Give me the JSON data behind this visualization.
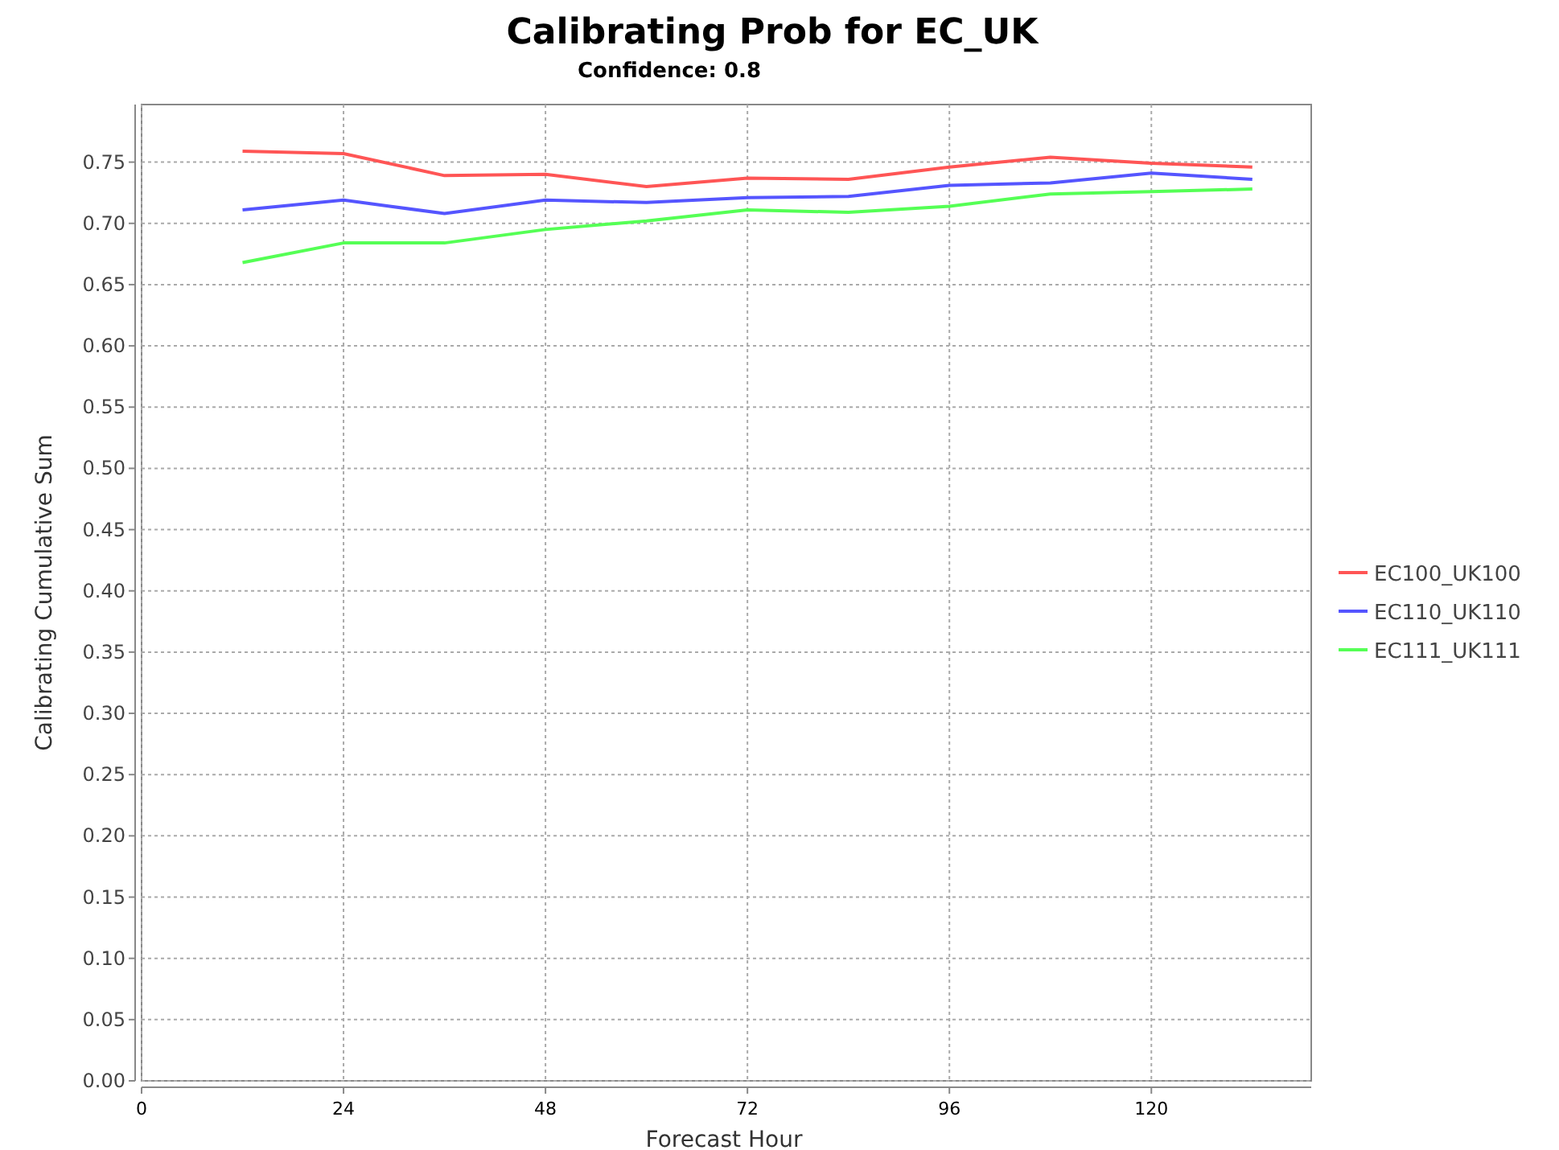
{
  "chart_data": {
    "type": "line",
    "title": "Calibrating Prob for EC_UK",
    "subtitle": "Confidence: 0.8",
    "xlabel": "Forecast Hour",
    "ylabel": "Calibrating Cumulative Sum",
    "x": [
      12,
      24,
      36,
      48,
      60,
      72,
      84,
      96,
      108,
      120,
      132
    ],
    "series": [
      {
        "name": "EC100_UK100",
        "color": "#ff5555",
        "values": [
          0.759,
          0.757,
          0.739,
          0.74,
          0.73,
          0.737,
          0.736,
          0.746,
          0.754,
          0.749,
          0.746
        ]
      },
      {
        "name": "EC110_UK110",
        "color": "#5555ff",
        "values": [
          0.711,
          0.719,
          0.708,
          0.719,
          0.717,
          0.721,
          0.722,
          0.731,
          0.733,
          0.741,
          0.736
        ]
      },
      {
        "name": "EC111_UK111",
        "color": "#55ff55",
        "values": [
          0.668,
          0.684,
          0.684,
          0.695,
          0.702,
          0.711,
          0.709,
          0.714,
          0.724,
          0.726,
          0.728
        ]
      }
    ],
    "xlim": [
      0,
      139
    ],
    "xticks": [
      0,
      24,
      48,
      72,
      96,
      120
    ],
    "ylim": [
      0,
      0.797
    ],
    "yticks": [
      {
        "value": 0,
        "label": "0.00"
      },
      {
        "value": 0.05,
        "label": "0.05"
      },
      {
        "value": 0.1,
        "label": "0.10"
      },
      {
        "value": 0.15,
        "label": "0.15"
      },
      {
        "value": 0.2,
        "label": "0.20"
      },
      {
        "value": 0.25,
        "label": "0.25"
      },
      {
        "value": 0.3,
        "label": "0.30"
      },
      {
        "value": 0.35,
        "label": "0.35"
      },
      {
        "value": 0.4,
        "label": "0.40"
      },
      {
        "value": 0.45,
        "label": "0.45"
      },
      {
        "value": 0.5,
        "label": "0.50"
      },
      {
        "value": 0.55,
        "label": "0.55"
      },
      {
        "value": 0.6,
        "label": "0.60"
      },
      {
        "value": 0.65,
        "label": "0.65"
      },
      {
        "value": 0.7,
        "label": "0.70"
      },
      {
        "value": 0.75,
        "label": "0.75"
      }
    ],
    "grid": true,
    "legend": "right",
    "marker": "none",
    "line_style": "solid"
  }
}
